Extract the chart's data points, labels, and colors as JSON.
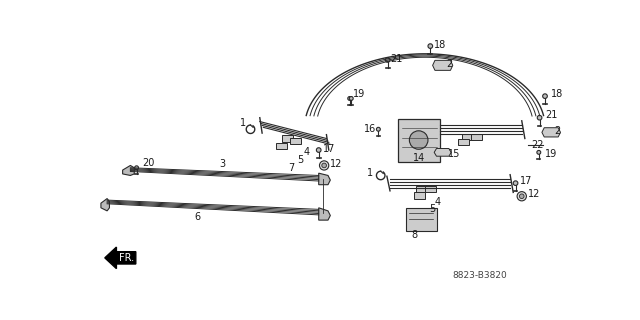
{
  "bg_color": "#ffffff",
  "part_number_label": "8823-B3820",
  "line_color": "#2a2a2a",
  "label_color": "#1a1a1a",
  "label_fontsize": 7,
  "fig_width": 6.4,
  "fig_height": 3.2,
  "dpi": 100
}
